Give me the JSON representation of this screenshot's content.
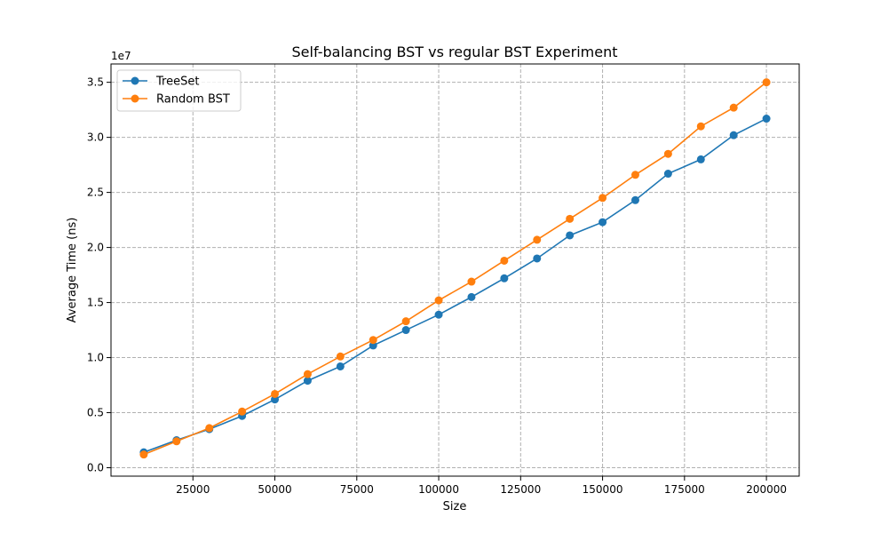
{
  "chart_data": {
    "type": "line",
    "title": "Self-balancing BST vs regular BST Experiment",
    "xlabel": "Size",
    "ylabel": "Average Time (ns)",
    "y_offset_label": "1e7",
    "xlim": [
      0,
      210000
    ],
    "ylim": [
      -0.0765,
      3.6665
    ],
    "x_ticks": [
      25000,
      50000,
      75000,
      100000,
      125000,
      150000,
      175000,
      200000
    ],
    "x_tick_labels": [
      "25000",
      "50000",
      "75000",
      "100000",
      "125000",
      "150000",
      "175000",
      "200000"
    ],
    "y_ticks": [
      0,
      0.5,
      1.0,
      1.5,
      2.0,
      2.5,
      3.0,
      3.5
    ],
    "y_tick_labels": [
      "0.0",
      "0.5",
      "1.0",
      "1.5",
      "2.0",
      "2.5",
      "3.0",
      "3.5"
    ],
    "grid": true,
    "legend_position": "top-left",
    "x": [
      10000,
      20000,
      30000,
      40000,
      50000,
      60000,
      70000,
      80000,
      90000,
      100000,
      110000,
      120000,
      130000,
      140000,
      150000,
      160000,
      170000,
      180000,
      190000,
      200000
    ],
    "series": [
      {
        "name": "TreeSet",
        "color": "#1f77b4",
        "values": [
          0.14,
          0.25,
          0.35,
          0.47,
          0.62,
          0.79,
          0.92,
          1.11,
          1.25,
          1.39,
          1.55,
          1.72,
          1.9,
          2.11,
          2.23,
          2.43,
          2.67,
          2.8,
          3.02,
          3.17
        ]
      },
      {
        "name": "Random BST",
        "color": "#ff7f0e",
        "values": [
          0.12,
          0.24,
          0.36,
          0.51,
          0.67,
          0.85,
          1.01,
          1.16,
          1.33,
          1.52,
          1.69,
          1.88,
          2.07,
          2.26,
          2.45,
          2.66,
          2.85,
          3.1,
          3.27,
          3.5
        ]
      }
    ]
  }
}
